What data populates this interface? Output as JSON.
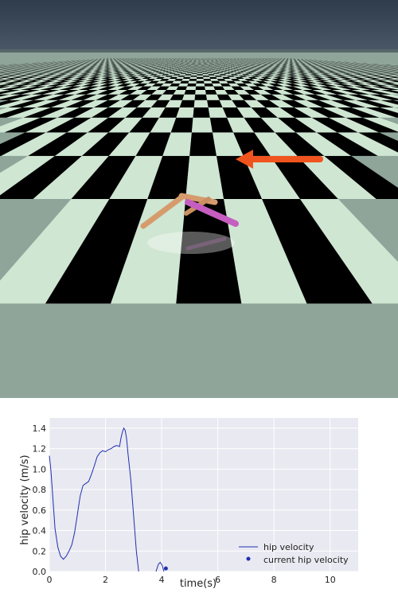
{
  "scene": {
    "sky_color": "#3a4757",
    "floor_light_color": "#cfe6d2",
    "floor_dark_color": "#000000",
    "arrow_color": "#f0541e",
    "robot_leg_color": "#d69b6c",
    "robot_rear_leg_color": "#c55ec0",
    "arrow_direction": "left"
  },
  "chart_data": {
    "type": "line",
    "title": "",
    "xlabel": "time(s)",
    "ylabel": "hip velocity (m/s)",
    "xlim": [
      0,
      11
    ],
    "ylim": [
      0,
      1.5
    ],
    "xticks": [
      "0",
      "2",
      "4",
      "6",
      "8",
      "10"
    ],
    "yticks": [
      "0.0",
      "0.2",
      "0.4",
      "0.6",
      "0.8",
      "1.0",
      "1.2",
      "1.4"
    ],
    "grid": true,
    "legend_position": "lower-right",
    "series": [
      {
        "name": "hip velocity",
        "color": "#1f2fb0",
        "x": [
          0,
          0.05,
          0.1,
          0.15,
          0.2,
          0.3,
          0.4,
          0.5,
          0.6,
          0.7,
          0.8,
          0.9,
          1.0,
          1.05,
          1.1,
          1.2,
          1.3,
          1.4,
          1.5,
          1.6,
          1.7,
          1.8,
          1.9,
          2.0,
          2.1,
          2.2,
          2.3,
          2.4,
          2.5,
          2.55,
          2.6,
          2.65,
          2.7,
          2.75,
          2.8,
          2.9,
          3.0,
          3.1,
          3.18
        ],
        "y": [
          1.13,
          1.0,
          0.82,
          0.62,
          0.42,
          0.24,
          0.15,
          0.12,
          0.15,
          0.2,
          0.26,
          0.38,
          0.56,
          0.65,
          0.74,
          0.84,
          0.86,
          0.88,
          0.95,
          1.03,
          1.12,
          1.16,
          1.18,
          1.17,
          1.19,
          1.2,
          1.22,
          1.23,
          1.22,
          1.3,
          1.36,
          1.4,
          1.38,
          1.3,
          1.15,
          0.9,
          0.55,
          0.2,
          0.0
        ]
      },
      {
        "name": "hip velocity (tail)",
        "color": "#1f2fb0",
        "x": [
          3.8,
          3.88,
          3.95,
          4.02,
          4.08
        ],
        "y": [
          0.0,
          0.07,
          0.09,
          0.06,
          0.0
        ]
      }
    ],
    "current_point": {
      "name": "current hip velocity",
      "x": 4.15,
      "y": 0.03,
      "color": "#1f2fb0"
    },
    "legend": [
      {
        "label": "hip velocity",
        "marker": "line"
      },
      {
        "label": "current hip velocity",
        "marker": "dot"
      }
    ]
  }
}
